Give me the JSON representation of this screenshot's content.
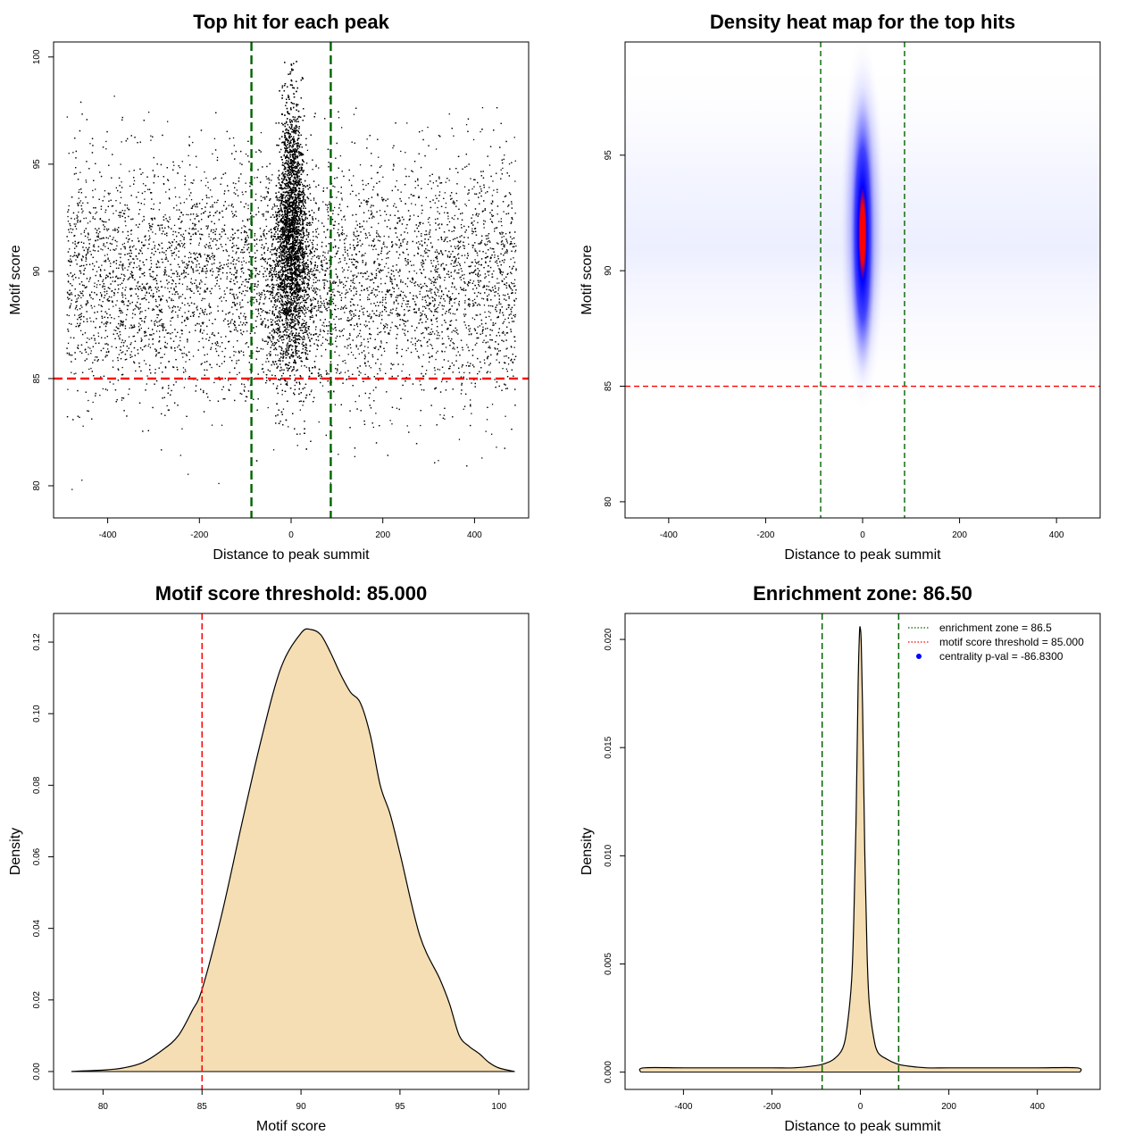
{
  "chart_data": [
    {
      "id": "top-hit-scatter",
      "type": "scatter",
      "title": "Top hit for each peak",
      "xlabel": "Distance to peak summit",
      "ylabel": "Motif score",
      "xlim": [
        -518,
        518
      ],
      "ylim": [
        78.5,
        100.7
      ],
      "xticks": [
        -400,
        -200,
        0,
        200,
        400
      ],
      "yticks": [
        80,
        85,
        90,
        95,
        100
      ],
      "xtick_labels": [
        "-400",
        "-200",
        "0",
        "200",
        "400"
      ],
      "ytick_labels": [
        "80",
        "85",
        "90",
        "95",
        "100"
      ],
      "grid": false,
      "description": "approx. 20000 top motif hits, uniform background over x in [-490, 490] with motif score about 80-98, plus a dense central cluster near x = 0 with scores up to about 100",
      "vlines": [
        {
          "x": -86.5,
          "color": "#006400",
          "style": "dashed"
        },
        {
          "x": 86.5,
          "color": "#006400",
          "style": "dashed"
        }
      ],
      "hlines": [
        {
          "y": 85,
          "color": "#ff0000",
          "style": "dashed"
        }
      ]
    },
    {
      "id": "density-heatmap",
      "type": "heatmap",
      "title": "Density heat map for the top hits",
      "xlabel": "Distance to peak summit",
      "ylabel": "Motif score",
      "xlim": [
        -490,
        490
      ],
      "ylim": [
        79.3,
        99.9
      ],
      "xticks": [
        -400,
        -200,
        0,
        200,
        400
      ],
      "yticks": [
        80,
        85,
        90,
        95
      ],
      "xtick_labels": [
        "-400",
        "-200",
        "0",
        "200",
        "400"
      ],
      "ytick_labels": [
        "80",
        "85",
        "90",
        "95"
      ],
      "grid": false,
      "color_scale": [
        "#ffffff",
        "#0000ff",
        "#ff0000"
      ],
      "hotspot": {
        "x": 0,
        "y": 92,
        "description": "high density at x near 0, motif score about 88-96"
      },
      "vlines": [
        {
          "x": -86.5,
          "color": "#006400",
          "style": "dashed"
        },
        {
          "x": 86.5,
          "color": "#006400",
          "style": "dashed"
        }
      ],
      "hlines": [
        {
          "y": 85,
          "color": "#ff0000",
          "style": "dashed"
        }
      ]
    },
    {
      "id": "motif-score-density",
      "type": "area",
      "title": "Motif score threshold: 85.000",
      "xlabel": "Motif score",
      "ylabel": "Density",
      "xlim": [
        77.5,
        101.5
      ],
      "ylim": [
        -0.005,
        0.128
      ],
      "xticks": [
        80,
        85,
        90,
        95,
        100
      ],
      "yticks": [
        0.0,
        0.02,
        0.04,
        0.06,
        0.08,
        0.1,
        0.12
      ],
      "xtick_labels": [
        "80",
        "85",
        "90",
        "95",
        "100"
      ],
      "ytick_labels": [
        "0.00",
        "0.02",
        "0.04",
        "0.06",
        "0.08",
        "0.10",
        "0.12"
      ],
      "grid": false,
      "fill": "#f5deb3",
      "x": [
        78.4,
        79,
        80,
        81,
        82,
        83,
        83.8,
        84.5,
        85,
        86,
        87,
        88,
        89,
        90,
        90.5,
        91,
        91.5,
        92,
        92.5,
        93,
        93.5,
        94,
        94.5,
        95,
        96,
        97,
        97.5,
        98,
        98.5,
        99,
        99.5,
        100,
        100.8
      ],
      "y": [
        0.0,
        0.0002,
        0.0004,
        0.001,
        0.0025,
        0.006,
        0.01,
        0.017,
        0.023,
        0.044,
        0.069,
        0.093,
        0.113,
        0.1225,
        0.1235,
        0.122,
        0.117,
        0.111,
        0.106,
        0.103,
        0.094,
        0.08,
        0.072,
        0.061,
        0.038,
        0.026,
        0.019,
        0.01,
        0.007,
        0.005,
        0.0025,
        0.001,
        0.0
      ],
      "vlines": [
        {
          "x": 85,
          "color": "#ff0000",
          "style": "dashed"
        }
      ]
    },
    {
      "id": "distance-density",
      "type": "area",
      "title": "Enrichment zone: 86.50",
      "xlabel": "Distance to peak summit",
      "ylabel": "Density",
      "xlim": [
        -532,
        542
      ],
      "ylim": [
        -0.0008,
        0.0212
      ],
      "xticks": [
        -400,
        -200,
        0,
        200,
        400
      ],
      "yticks": [
        0.0,
        0.005,
        0.01,
        0.015,
        0.02
      ],
      "xtick_labels": [
        "-400",
        "-200",
        "0",
        "200",
        "400"
      ],
      "ytick_labels": [
        "0.000",
        "0.005",
        "0.010",
        "0.015",
        "0.020"
      ],
      "grid": false,
      "fill": "#f5deb3",
      "x": [
        -497,
        -490,
        -400,
        -300,
        -200,
        -150,
        -100,
        -80,
        -60,
        -40,
        -30,
        -20,
        -15,
        -10,
        -5,
        -2,
        0,
        2,
        5,
        10,
        15,
        20,
        30,
        40,
        60,
        80,
        100,
        150,
        200,
        300,
        400,
        490,
        497
      ],
      "y": [
        0.0,
        0.0002,
        0.0002,
        0.0002,
        0.0002,
        0.0002,
        0.0003,
        0.0004,
        0.0006,
        0.0011,
        0.0021,
        0.0042,
        0.007,
        0.0115,
        0.018,
        0.0203,
        0.0205,
        0.0198,
        0.0168,
        0.01,
        0.0055,
        0.0032,
        0.0016,
        0.0009,
        0.0006,
        0.0004,
        0.0003,
        0.0002,
        0.0002,
        0.0002,
        0.0002,
        0.0002,
        0.0
      ],
      "vlines": [
        {
          "x": -86.5,
          "color": "#006400",
          "style": "dashed"
        },
        {
          "x": 86.5,
          "color": "#006400",
          "style": "dashed"
        }
      ],
      "legend_position": "top-right",
      "legend": [
        {
          "label": "enrichment zone = 86.5",
          "symbol": "dotted-line",
          "color": "#006400"
        },
        {
          "label": "motif score threshold = 85.000",
          "symbol": "dotted-line",
          "color": "#ff0000"
        },
        {
          "label": "centrality p-val = -86.8300",
          "symbol": "point",
          "color": "#0000ff"
        }
      ]
    }
  ]
}
